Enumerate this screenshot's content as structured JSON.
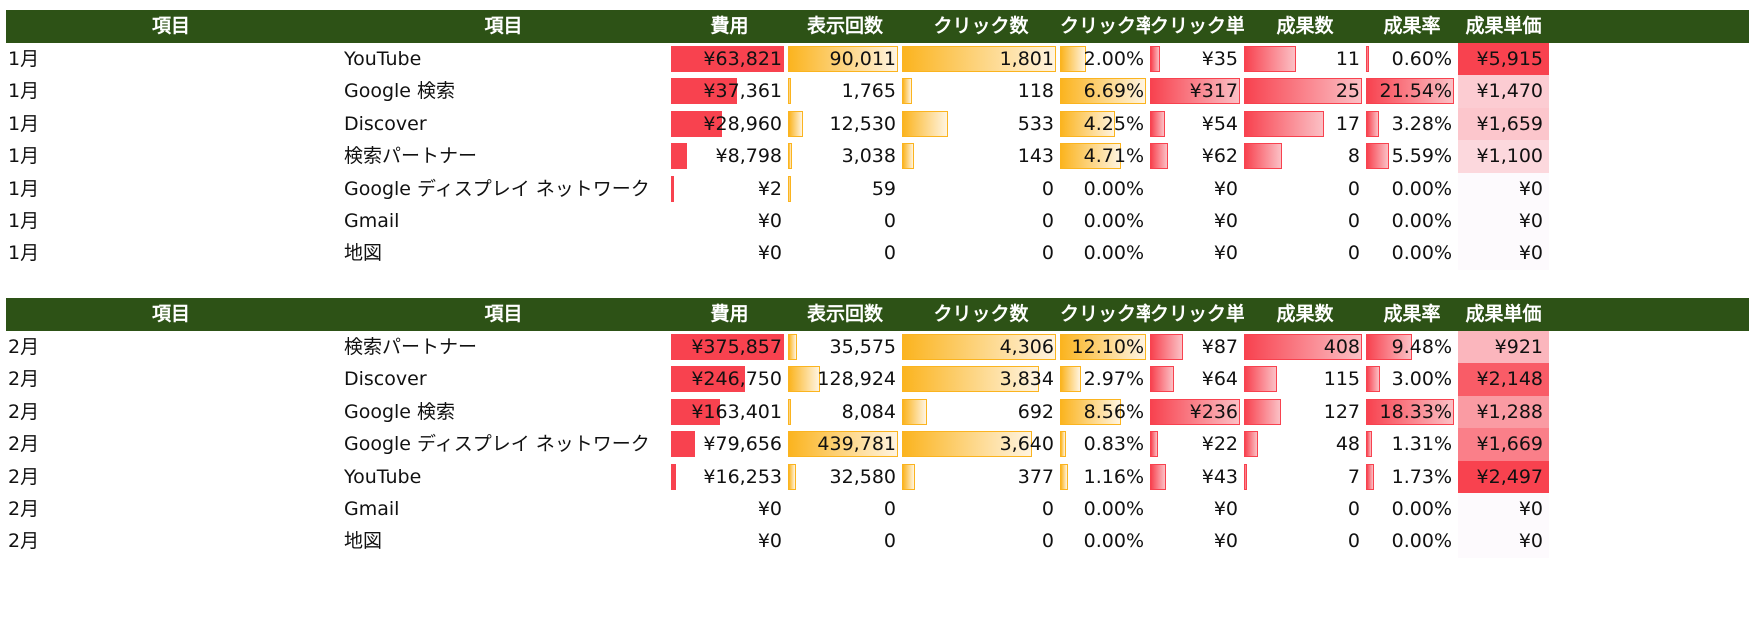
{
  "headers": [
    "項目",
    "項目",
    "費用",
    "表示回数",
    "クリック数",
    "クリック率",
    "クリック単価",
    "成果数",
    "成果率",
    "成果単価"
  ],
  "colors": {
    "header_bg": "#2d5216",
    "cost_bar": "#f8424f",
    "impression_bar": "#fbb41f",
    "click_bar": "#fbb41f",
    "ctr_bar": "#fbb41f",
    "cpc_bar": "#f8424f",
    "conv_bar": "#f8424f",
    "cvr_bar": "#f8424f",
    "cpa_scale": [
      "#fdfafd",
      "#f8424f"
    ]
  },
  "tables": [
    {
      "rows": [
        {
          "month": "1月",
          "item": "YouTube",
          "cost": "¥63,821",
          "impressions": "90,011",
          "clicks": "1,801",
          "ctr": "2.00%",
          "cpc": "¥35",
          "conversions": "11",
          "cvr": "0.60%",
          "cpa": "¥5,915",
          "cost_v": 63821,
          "imp_v": 90011,
          "clk_v": 1801,
          "ctr_v": 2.0,
          "cpc_v": 35,
          "conv_v": 11,
          "cvr_v": 0.6,
          "cpa_v": 5915
        },
        {
          "month": "1月",
          "item": "Google 検索",
          "cost": "¥37,361",
          "impressions": "1,765",
          "clicks": "118",
          "ctr": "6.69%",
          "cpc": "¥317",
          "conversions": "25",
          "cvr": "21.54%",
          "cpa": "¥1,470",
          "cost_v": 37361,
          "imp_v": 1765,
          "clk_v": 118,
          "ctr_v": 6.69,
          "cpc_v": 317,
          "conv_v": 25,
          "cvr_v": 21.54,
          "cpa_v": 1470
        },
        {
          "month": "1月",
          "item": "Discover",
          "cost": "¥28,960",
          "impressions": "12,530",
          "clicks": "533",
          "ctr": "4.25%",
          "cpc": "¥54",
          "conversions": "17",
          "cvr": "3.28%",
          "cpa": "¥1,659",
          "cost_v": 28960,
          "imp_v": 12530,
          "clk_v": 533,
          "ctr_v": 4.25,
          "cpc_v": 54,
          "conv_v": 17,
          "cvr_v": 3.28,
          "cpa_v": 1659
        },
        {
          "month": "1月",
          "item": "検索パートナー",
          "cost": "¥8,798",
          "impressions": "3,038",
          "clicks": "143",
          "ctr": "4.71%",
          "cpc": "¥62",
          "conversions": "8",
          "cvr": "5.59%",
          "cpa": "¥1,100",
          "cost_v": 8798,
          "imp_v": 3038,
          "clk_v": 143,
          "ctr_v": 4.71,
          "cpc_v": 62,
          "conv_v": 8,
          "cvr_v": 5.59,
          "cpa_v": 1100
        },
        {
          "month": "1月",
          "item": "Google ディスプレイ ネットワーク",
          "cost": "¥2",
          "impressions": "59",
          "clicks": "0",
          "ctr": "0.00%",
          "cpc": "¥0",
          "conversions": "0",
          "cvr": "0.00%",
          "cpa": "¥0",
          "cost_v": 2,
          "imp_v": 59,
          "clk_v": 0,
          "ctr_v": 0,
          "cpc_v": 0,
          "conv_v": 0,
          "cvr_v": 0,
          "cpa_v": 0
        },
        {
          "month": "1月",
          "item": "Gmail",
          "cost": "¥0",
          "impressions": "0",
          "clicks": "0",
          "ctr": "0.00%",
          "cpc": "¥0",
          "conversions": "0",
          "cvr": "0.00%",
          "cpa": "¥0",
          "cost_v": 0,
          "imp_v": 0,
          "clk_v": 0,
          "ctr_v": 0,
          "cpc_v": 0,
          "conv_v": 0,
          "cvr_v": 0,
          "cpa_v": 0
        },
        {
          "month": "1月",
          "item": "地図",
          "cost": "¥0",
          "impressions": "0",
          "clicks": "0",
          "ctr": "0.00%",
          "cpc": "¥0",
          "conversions": "0",
          "cvr": "0.00%",
          "cpa": "¥0",
          "cost_v": 0,
          "imp_v": 0,
          "clk_v": 0,
          "ctr_v": 0,
          "cpc_v": 0,
          "conv_v": 0,
          "cvr_v": 0,
          "cpa_v": 0
        }
      ]
    },
    {
      "rows": [
        {
          "month": "2月",
          "item": "検索パートナー",
          "cost": "¥375,857",
          "impressions": "35,575",
          "clicks": "4,306",
          "ctr": "12.10%",
          "cpc": "¥87",
          "conversions": "408",
          "cvr": "9.48%",
          "cpa": "¥921",
          "cost_v": 375857,
          "imp_v": 35575,
          "clk_v": 4306,
          "ctr_v": 12.1,
          "cpc_v": 87,
          "conv_v": 408,
          "cvr_v": 9.48,
          "cpa_v": 921
        },
        {
          "month": "2月",
          "item": "Discover",
          "cost": "¥246,750",
          "impressions": "128,924",
          "clicks": "3,834",
          "ctr": "2.97%",
          "cpc": "¥64",
          "conversions": "115",
          "cvr": "3.00%",
          "cpa": "¥2,148",
          "cost_v": 246750,
          "imp_v": 128924,
          "clk_v": 3834,
          "ctr_v": 2.97,
          "cpc_v": 64,
          "conv_v": 115,
          "cvr_v": 3.0,
          "cpa_v": 2148
        },
        {
          "month": "2月",
          "item": "Google 検索",
          "cost": "¥163,401",
          "impressions": "8,084",
          "clicks": "692",
          "ctr": "8.56%",
          "cpc": "¥236",
          "conversions": "127",
          "cvr": "18.33%",
          "cpa": "¥1,288",
          "cost_v": 163401,
          "imp_v": 8084,
          "clk_v": 692,
          "ctr_v": 8.56,
          "cpc_v": 236,
          "conv_v": 127,
          "cvr_v": 18.33,
          "cpa_v": 1288
        },
        {
          "month": "2月",
          "item": "Google ディスプレイ ネットワーク",
          "cost": "¥79,656",
          "impressions": "439,781",
          "clicks": "3,640",
          "ctr": "0.83%",
          "cpc": "¥22",
          "conversions": "48",
          "cvr": "1.31%",
          "cpa": "¥1,669",
          "cost_v": 79656,
          "imp_v": 439781,
          "clk_v": 3640,
          "ctr_v": 0.83,
          "cpc_v": 22,
          "conv_v": 48,
          "cvr_v": 1.31,
          "cpa_v": 1669
        },
        {
          "month": "2月",
          "item": "YouTube",
          "cost": "¥16,253",
          "impressions": "32,580",
          "clicks": "377",
          "ctr": "1.16%",
          "cpc": "¥43",
          "conversions": "7",
          "cvr": "1.73%",
          "cpa": "¥2,497",
          "cost_v": 16253,
          "imp_v": 32580,
          "clk_v": 377,
          "ctr_v": 1.16,
          "cpc_v": 43,
          "conv_v": 7,
          "cvr_v": 1.73,
          "cpa_v": 2497
        },
        {
          "month": "2月",
          "item": "Gmail",
          "cost": "¥0",
          "impressions": "0",
          "clicks": "0",
          "ctr": "0.00%",
          "cpc": "¥0",
          "conversions": "0",
          "cvr": "0.00%",
          "cpa": "¥0",
          "cost_v": 0,
          "imp_v": 0,
          "clk_v": 0,
          "ctr_v": 0,
          "cpc_v": 0,
          "conv_v": 0,
          "cvr_v": 0,
          "cpa_v": 0
        },
        {
          "month": "2月",
          "item": "地図",
          "cost": "¥0",
          "impressions": "0",
          "clicks": "0",
          "ctr": "0.00%",
          "cpc": "¥0",
          "conversions": "0",
          "cvr": "0.00%",
          "cpa": "¥0",
          "cost_v": 0,
          "imp_v": 0,
          "clk_v": 0,
          "ctr_v": 0,
          "cpc_v": 0,
          "conv_v": 0,
          "cvr_v": 0,
          "cpa_v": 0
        }
      ]
    }
  ]
}
